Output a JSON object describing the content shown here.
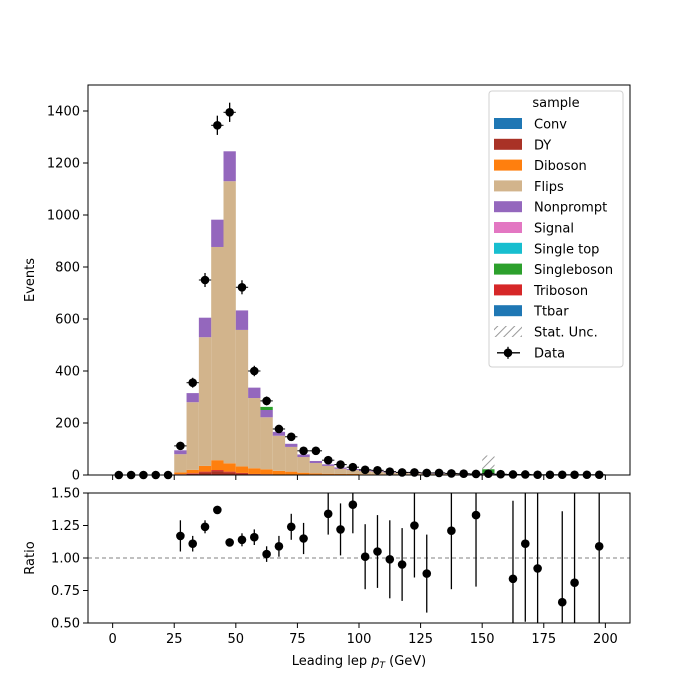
{
  "chart_data": {
    "type": "bar",
    "stacked": true,
    "xlabel_main": "Leading lep",
    "xlabel_var": "p",
    "xlabel_sub": "T",
    "xlabel_unit": "(GeV)",
    "ylabel": "Events",
    "ratio_ylabel": "Ratio",
    "xlim": [
      -10,
      210
    ],
    "ylim": [
      0,
      1500
    ],
    "ratio_ylim": [
      0.5,
      1.5
    ],
    "ratio_reference": 1.0,
    "x_ticks": [
      0,
      25,
      50,
      75,
      100,
      125,
      150,
      175,
      200
    ],
    "y_ticks": [
      0,
      200,
      400,
      600,
      800,
      1000,
      1200,
      1400
    ],
    "ratio_ticks": [
      "0.50",
      "0.75",
      "1.00",
      "1.25",
      "1.50"
    ],
    "bin_width": 5,
    "x": [
      2.5,
      7.5,
      12.5,
      17.5,
      22.5,
      27.5,
      32.5,
      37.5,
      42.5,
      47.5,
      52.5,
      57.5,
      62.5,
      67.5,
      72.5,
      77.5,
      82.5,
      87.5,
      92.5,
      97.5,
      102.5,
      107.5,
      112.5,
      117.5,
      122.5,
      127.5,
      132.5,
      137.5,
      142.5,
      147.5,
      152.5,
      157.5,
      162.5,
      167.5,
      172.5,
      177.5,
      182.5,
      187.5,
      192.5,
      197.5
    ],
    "legend": {
      "title": "sample",
      "position": "top-right",
      "entries": [
        "Conv",
        "DY",
        "Diboson",
        "Flips",
        "Nonprompt",
        "Signal",
        "Single top",
        "Singleboson",
        "Triboson",
        "Ttbar",
        "Stat. Unc.",
        "Data"
      ]
    },
    "series": [
      {
        "name": "DY",
        "color": "#a93226",
        "values": [
          0,
          0,
          0,
          0,
          0,
          2,
          5,
          10,
          15,
          10,
          6,
          3,
          2,
          1,
          1,
          0,
          0,
          0,
          0,
          0,
          0,
          0,
          0,
          0,
          0,
          0,
          0,
          0,
          0,
          0,
          0,
          0,
          0,
          0,
          0,
          0,
          0,
          0,
          0,
          0
        ]
      },
      {
        "name": "Triboson",
        "color": "#d62728",
        "values": [
          0,
          0,
          0,
          0,
          0,
          1,
          2,
          3,
          4,
          3,
          2,
          1,
          1,
          0,
          0,
          0,
          0,
          0,
          0,
          0,
          0,
          0,
          0,
          0,
          0,
          0,
          0,
          0,
          0,
          0,
          0,
          0,
          0,
          0,
          0,
          0,
          0,
          0,
          0,
          0
        ]
      },
      {
        "name": "Diboson",
        "color": "#ff7f0e",
        "values": [
          0,
          0,
          0,
          0,
          0,
          7,
          13,
          22,
          38,
          32,
          25,
          22,
          19,
          15,
          12,
          9,
          6,
          5,
          4,
          4,
          3,
          3,
          2,
          2,
          2,
          1,
          1,
          1,
          1,
          1,
          1,
          0,
          0,
          0,
          0,
          0,
          0,
          0,
          0,
          0
        ]
      },
      {
        "name": "Flips",
        "color": "#d2b48c",
        "values": [
          0,
          0,
          0,
          0,
          0,
          70,
          260,
          495,
          820,
          1085,
          525,
          270,
          200,
          135,
          95,
          60,
          40,
          30,
          20,
          15,
          12,
          10,
          7,
          6,
          5,
          4,
          3,
          3,
          2,
          2,
          2,
          1,
          1,
          1,
          1,
          0,
          0,
          0,
          0,
          0
        ]
      },
      {
        "name": "Nonprompt",
        "color": "#9467bd",
        "values": [
          0,
          0,
          0,
          0,
          0,
          15,
          35,
          75,
          105,
          115,
          75,
          40,
          28,
          15,
          12,
          10,
          8,
          6,
          5,
          4,
          4,
          3,
          2,
          2,
          2,
          1,
          1,
          1,
          1,
          1,
          1,
          0,
          0,
          0,
          0,
          0,
          0,
          0,
          0,
          0
        ]
      },
      {
        "name": "Singleboson",
        "color": "#2ca02c",
        "values": [
          0,
          0,
          0,
          0,
          0,
          0,
          0,
          0,
          0,
          0,
          0,
          0,
          12,
          0,
          0,
          0,
          0,
          0,
          0,
          0,
          0,
          0,
          0,
          0,
          0,
          0,
          0,
          0,
          0,
          0,
          18,
          0,
          0,
          0,
          0,
          0,
          0,
          0,
          0,
          0
        ]
      }
    ],
    "data": {
      "name": "Data",
      "values": [
        0,
        0,
        0,
        0,
        0,
        112,
        355,
        750,
        1345,
        1395,
        722,
        400,
        285,
        177,
        147,
        93,
        93,
        57,
        40,
        30,
        20,
        18,
        13,
        10,
        10,
        8,
        8,
        6,
        5,
        4,
        5,
        3,
        2,
        2,
        1,
        1,
        1,
        1,
        1,
        1
      ],
      "errors": [
        0,
        0,
        0,
        0,
        0,
        11,
        19,
        27,
        37,
        37,
        27,
        20,
        17,
        13,
        12,
        10,
        10,
        8,
        6,
        5,
        4,
        4,
        4,
        3,
        3,
        3,
        3,
        2,
        2,
        2,
        2,
        2,
        1,
        1,
        1,
        1,
        1,
        1,
        1,
        1
      ]
    },
    "ratio": {
      "x": [
        27.5,
        32.5,
        37.5,
        42.5,
        47.5,
        52.5,
        57.5,
        62.5,
        67.5,
        72.5,
        77.5,
        87.5,
        92.5,
        97.5,
        102.5,
        107.5,
        112.5,
        117.5,
        122.5,
        127.5,
        137.5,
        147.5,
        162.5,
        167.5,
        172.5,
        182.5,
        187.5,
        197.5
      ],
      "values": [
        1.17,
        1.11,
        1.24,
        1.37,
        1.12,
        1.14,
        1.16,
        1.03,
        1.09,
        1.24,
        1.15,
        1.34,
        1.22,
        1.41,
        1.01,
        1.05,
        0.99,
        0.95,
        1.25,
        0.88,
        1.21,
        1.33,
        0.84,
        1.11,
        0.92,
        0.66,
        0.81,
        1.09
      ],
      "errors": [
        0.12,
        0.06,
        0.05,
        0.03,
        0.03,
        0.05,
        0.06,
        0.06,
        0.08,
        0.1,
        0.12,
        0.16,
        0.2,
        0.22,
        0.25,
        0.28,
        0.3,
        0.28,
        0.4,
        0.3,
        0.45,
        0.55,
        0.6,
        0.6,
        0.6,
        0.7,
        0.7,
        0.8
      ]
    },
    "stat_unc_bins": [
      {
        "x": 152.5,
        "low": 0,
        "high": 75
      }
    ]
  }
}
